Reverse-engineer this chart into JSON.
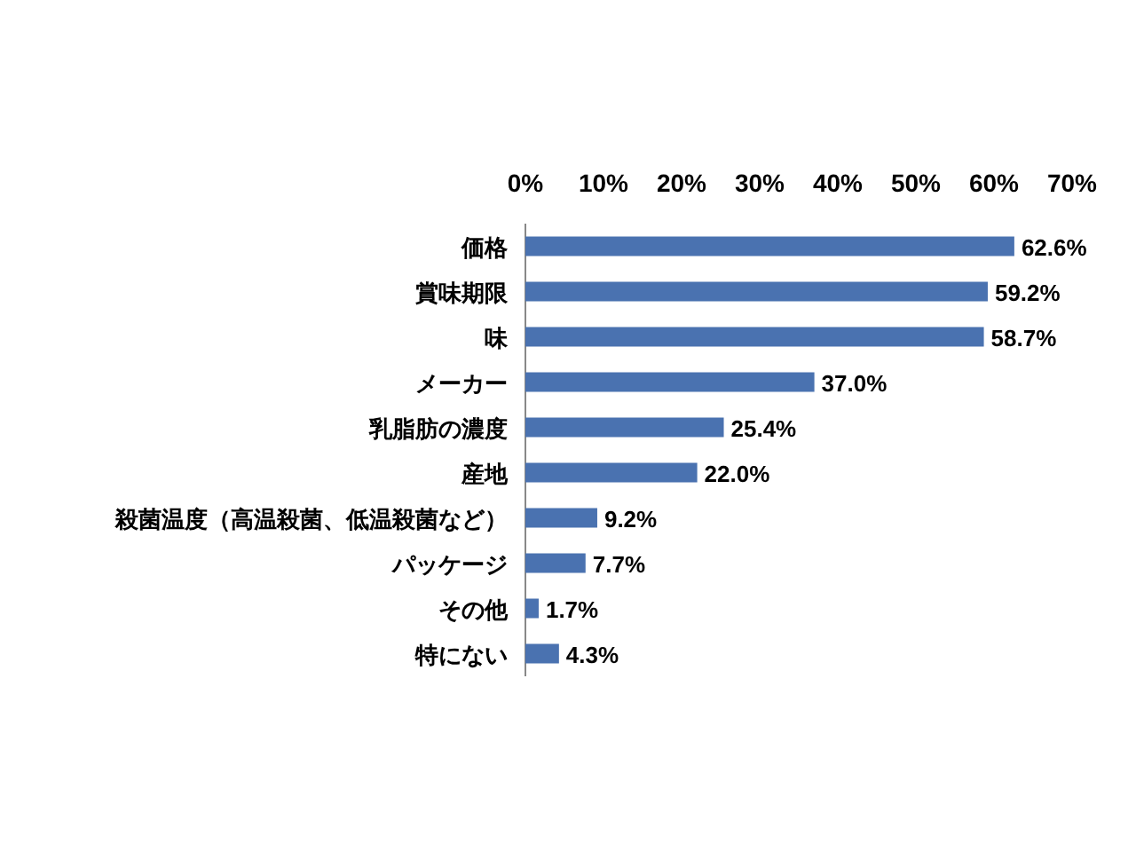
{
  "chart_data": {
    "type": "bar",
    "orientation": "horizontal",
    "categories": [
      "価格",
      "賞味期限",
      "味",
      "メーカー",
      "乳脂肪の濃度",
      "産地",
      "殺菌温度（高温殺菌、低温殺菌など）",
      "パッケージ",
      "その他",
      "特にない"
    ],
    "values": [
      62.6,
      59.2,
      58.7,
      37.0,
      25.4,
      22.0,
      9.2,
      7.7,
      1.7,
      4.3
    ],
    "value_labels": [
      "62.6%",
      "59.2%",
      "58.7%",
      "37.0%",
      "25.4%",
      "22.0%",
      "9.2%",
      "7.7%",
      "1.7%",
      "4.3%"
    ],
    "color": "#4a72b0",
    "xlim": [
      0,
      70
    ],
    "xticks": [
      {
        "value": 0,
        "label": "0%"
      },
      {
        "value": 10,
        "label": "10%"
      },
      {
        "value": 20,
        "label": "20%"
      },
      {
        "value": 30,
        "label": "30%"
      },
      {
        "value": 40,
        "label": "40%"
      },
      {
        "value": 50,
        "label": "50%"
      },
      {
        "value": 60,
        "label": "60%"
      },
      {
        "value": 70,
        "label": "70%"
      }
    ],
    "grid": false
  }
}
